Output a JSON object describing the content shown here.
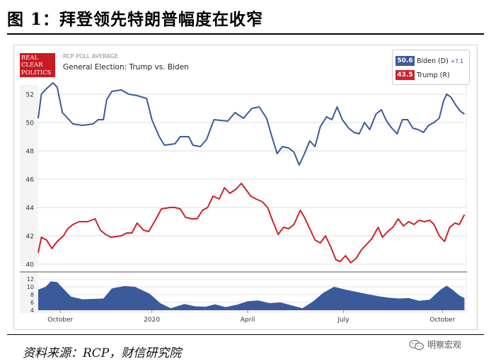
{
  "figure": {
    "title": "图 1：拜登领先特朗普幅度在收窄",
    "source": "资料来源：RCP，财信研究院",
    "watermark": "明察宏观"
  },
  "card": {
    "logo_lines": [
      "REAL",
      "CLEAR",
      "POLITICS"
    ],
    "eyebrow": "RCP POLL AVERAGE",
    "race_title": "General Election: Trump vs. Biden"
  },
  "legend": {
    "biden": {
      "value": "50.6",
      "name": "Biden (D)",
      "spread": "+7.1",
      "color": "#3a5a9b"
    },
    "trump": {
      "value": "43.5",
      "name": "Trump (R)",
      "color": "#d0202a"
    }
  },
  "chart_data": [
    {
      "type": "line",
      "x_domain": [
        "2019-09-24",
        "2020-11-03"
      ],
      "ylim": [
        40,
        52
      ],
      "yticks": [
        40,
        42,
        44,
        46,
        48,
        50,
        52
      ],
      "grid": true,
      "series": [
        {
          "name": "Biden (D)",
          "color": "#3a5a9b",
          "points": [
            [
              "2019-09-24",
              50.3
            ],
            [
              "2019-09-27",
              52.0
            ],
            [
              "2019-10-02",
              52.4
            ],
            [
              "2019-10-08",
              52.8
            ],
            [
              "2019-10-12",
              52.5
            ],
            [
              "2019-10-17",
              50.7
            ],
            [
              "2019-10-22",
              50.3
            ],
            [
              "2019-10-27",
              49.9
            ],
            [
              "2019-11-05",
              49.8
            ],
            [
              "2019-11-15",
              49.9
            ],
            [
              "2019-11-20",
              50.2
            ],
            [
              "2019-11-25",
              50.2
            ],
            [
              "2019-11-28",
              51.6
            ],
            [
              "2019-12-03",
              52.2
            ],
            [
              "2019-12-12",
              52.3
            ],
            [
              "2019-12-19",
              52.0
            ],
            [
              "2019-12-27",
              51.9
            ],
            [
              "2020-01-05",
              51.7
            ],
            [
              "2020-01-10",
              50.2
            ],
            [
              "2020-01-17",
              49.0
            ],
            [
              "2020-01-22",
              48.4
            ],
            [
              "2020-02-01",
              48.5
            ],
            [
              "2020-02-06",
              49.0
            ],
            [
              "2020-02-14",
              49.0
            ],
            [
              "2020-02-18",
              48.4
            ],
            [
              "2020-02-25",
              48.3
            ],
            [
              "2020-03-02",
              48.8
            ],
            [
              "2020-03-09",
              50.2
            ],
            [
              "2020-03-22",
              50.1
            ],
            [
              "2020-03-29",
              50.7
            ],
            [
              "2020-04-06",
              50.3
            ],
            [
              "2020-04-14",
              51.0
            ],
            [
              "2020-04-21",
              51.1
            ],
            [
              "2020-04-28",
              50.3
            ],
            [
              "2020-05-03",
              49.0
            ],
            [
              "2020-05-08",
              47.8
            ],
            [
              "2020-05-13",
              48.3
            ],
            [
              "2020-05-19",
              48.2
            ],
            [
              "2020-05-24",
              47.9
            ],
            [
              "2020-05-29",
              47.0
            ],
            [
              "2020-06-03",
              47.8
            ],
            [
              "2020-06-08",
              48.7
            ],
            [
              "2020-06-13",
              48.3
            ],
            [
              "2020-06-18",
              49.7
            ],
            [
              "2020-06-24",
              50.4
            ],
            [
              "2020-06-29",
              50.2
            ],
            [
              "2020-07-04",
              51.1
            ],
            [
              "2020-07-09",
              50.2
            ],
            [
              "2020-07-15",
              49.6
            ],
            [
              "2020-07-20",
              49.3
            ],
            [
              "2020-07-25",
              49.2
            ],
            [
              "2020-07-30",
              50.0
            ],
            [
              "2020-08-04",
              49.5
            ],
            [
              "2020-08-10",
              50.6
            ],
            [
              "2020-08-15",
              50.9
            ],
            [
              "2020-08-20",
              50.1
            ],
            [
              "2020-08-25",
              49.6
            ],
            [
              "2020-08-30",
              49.2
            ],
            [
              "2020-09-04",
              50.2
            ],
            [
              "2020-09-09",
              50.2
            ],
            [
              "2020-09-14",
              49.6
            ],
            [
              "2020-09-19",
              49.5
            ],
            [
              "2020-09-24",
              49.3
            ],
            [
              "2020-09-29",
              49.8
            ],
            [
              "2020-10-04",
              50.0
            ],
            [
              "2020-10-09",
              50.3
            ],
            [
              "2020-10-13",
              51.5
            ],
            [
              "2020-10-16",
              52.0
            ],
            [
              "2020-10-20",
              51.8
            ],
            [
              "2020-10-25",
              51.2
            ],
            [
              "2020-10-29",
              50.8
            ],
            [
              "2020-11-02",
              50.6
            ]
          ]
        },
        {
          "name": "Trump (R)",
          "color": "#d0202a",
          "points": [
            [
              "2019-09-24",
              40.8
            ],
            [
              "2019-09-27",
              41.9
            ],
            [
              "2019-10-02",
              41.7
            ],
            [
              "2019-10-07",
              41.1
            ],
            [
              "2019-10-12",
              41.6
            ],
            [
              "2019-10-18",
              42.0
            ],
            [
              "2019-10-22",
              42.5
            ],
            [
              "2019-10-27",
              42.8
            ],
            [
              "2019-11-02",
              43.0
            ],
            [
              "2019-11-10",
              43.0
            ],
            [
              "2019-11-17",
              43.2
            ],
            [
              "2019-11-22",
              42.4
            ],
            [
              "2019-11-27",
              42.1
            ],
            [
              "2019-12-02",
              41.9
            ],
            [
              "2019-12-12",
              42.0
            ],
            [
              "2019-12-17",
              42.2
            ],
            [
              "2019-12-22",
              42.2
            ],
            [
              "2019-12-27",
              42.9
            ],
            [
              "2020-01-02",
              42.4
            ],
            [
              "2020-01-07",
              42.3
            ],
            [
              "2020-01-14",
              43.2
            ],
            [
              "2020-01-19",
              43.9
            ],
            [
              "2020-01-27",
              44.0
            ],
            [
              "2020-02-01",
              44.0
            ],
            [
              "2020-02-06",
              43.9
            ],
            [
              "2020-02-11",
              43.3
            ],
            [
              "2020-02-17",
              43.2
            ],
            [
              "2020-02-22",
              43.2
            ],
            [
              "2020-02-27",
              43.8
            ],
            [
              "2020-03-03",
              44.0
            ],
            [
              "2020-03-08",
              44.8
            ],
            [
              "2020-03-14",
              44.6
            ],
            [
              "2020-03-19",
              45.4
            ],
            [
              "2020-03-24",
              45.0
            ],
            [
              "2020-03-30",
              45.3
            ],
            [
              "2020-04-04",
              45.7
            ],
            [
              "2020-04-09",
              45.2
            ],
            [
              "2020-04-13",
              44.8
            ],
            [
              "2020-04-18",
              44.6
            ],
            [
              "2020-04-24",
              44.4
            ],
            [
              "2020-04-29",
              44.0
            ],
            [
              "2020-05-04",
              43.0
            ],
            [
              "2020-05-09",
              42.1
            ],
            [
              "2020-05-14",
              42.6
            ],
            [
              "2020-05-19",
              42.5
            ],
            [
              "2020-05-24",
              42.8
            ],
            [
              "2020-05-30",
              43.8
            ],
            [
              "2020-06-03",
              43.3
            ],
            [
              "2020-06-08",
              42.5
            ],
            [
              "2020-06-13",
              41.7
            ],
            [
              "2020-06-18",
              41.5
            ],
            [
              "2020-06-23",
              42.0
            ],
            [
              "2020-06-28",
              41.2
            ],
            [
              "2020-07-03",
              40.3
            ],
            [
              "2020-07-07",
              40.2
            ],
            [
              "2020-07-12",
              40.6
            ],
            [
              "2020-07-17",
              40.1
            ],
            [
              "2020-07-22",
              40.4
            ],
            [
              "2020-07-27",
              41.0
            ],
            [
              "2020-08-01",
              41.4
            ],
            [
              "2020-08-06",
              41.8
            ],
            [
              "2020-08-12",
              42.6
            ],
            [
              "2020-08-16",
              41.9
            ],
            [
              "2020-08-21",
              42.3
            ],
            [
              "2020-08-26",
              42.6
            ],
            [
              "2020-08-31",
              43.2
            ],
            [
              "2020-09-05",
              42.7
            ],
            [
              "2020-09-10",
              43.0
            ],
            [
              "2020-09-15",
              42.8
            ],
            [
              "2020-09-20",
              43.1
            ],
            [
              "2020-09-25",
              43.0
            ],
            [
              "2020-09-30",
              43.1
            ],
            [
              "2020-10-04",
              42.8
            ],
            [
              "2020-10-09",
              42.0
            ],
            [
              "2020-10-14",
              41.6
            ],
            [
              "2020-10-19",
              42.6
            ],
            [
              "2020-10-24",
              42.9
            ],
            [
              "2020-10-28",
              42.8
            ],
            [
              "2020-11-02",
              43.5
            ]
          ]
        }
      ]
    },
    {
      "type": "area",
      "x_domain": [
        "2019-09-24",
        "2020-11-03"
      ],
      "ylim": [
        4,
        12
      ],
      "yticks": [
        4,
        6,
        8,
        10,
        12
      ],
      "color": "#3a5a9b",
      "points": [
        [
          "2019-09-24",
          9.3
        ],
        [
          "2019-10-01",
          10.0
        ],
        [
          "2019-10-06",
          11.4
        ],
        [
          "2019-10-12",
          11.2
        ],
        [
          "2019-10-18",
          9.5
        ],
        [
          "2019-10-25",
          7.5
        ],
        [
          "2019-11-05",
          6.8
        ],
        [
          "2019-11-15",
          6.9
        ],
        [
          "2019-11-25",
          7.0
        ],
        [
          "2019-12-03",
          9.6
        ],
        [
          "2019-12-15",
          10.2
        ],
        [
          "2019-12-25",
          10.0
        ],
        [
          "2020-01-08",
          8.2
        ],
        [
          "2020-01-18",
          5.8
        ],
        [
          "2020-01-28",
          4.5
        ],
        [
          "2020-02-10",
          5.6
        ],
        [
          "2020-02-20",
          5.0
        ],
        [
          "2020-03-01",
          4.9
        ],
        [
          "2020-03-10",
          5.5
        ],
        [
          "2020-03-20",
          4.8
        ],
        [
          "2020-03-31",
          5.4
        ],
        [
          "2020-04-10",
          6.3
        ],
        [
          "2020-04-20",
          6.5
        ],
        [
          "2020-05-01",
          5.8
        ],
        [
          "2020-05-11",
          6.0
        ],
        [
          "2020-05-21",
          5.3
        ],
        [
          "2020-06-01",
          4.5
        ],
        [
          "2020-06-11",
          6.2
        ],
        [
          "2020-06-21",
          8.5
        ],
        [
          "2020-07-01",
          10.0
        ],
        [
          "2020-07-12",
          9.3
        ],
        [
          "2020-07-22",
          8.7
        ],
        [
          "2020-08-02",
          8.1
        ],
        [
          "2020-08-12",
          7.6
        ],
        [
          "2020-08-22",
          7.2
        ],
        [
          "2020-09-01",
          7.0
        ],
        [
          "2020-09-10",
          7.1
        ],
        [
          "2020-09-20",
          6.4
        ],
        [
          "2020-09-30",
          6.7
        ],
        [
          "2020-10-10",
          9.2
        ],
        [
          "2020-10-16",
          10.3
        ],
        [
          "2020-10-22",
          9.2
        ],
        [
          "2020-10-28",
          7.8
        ],
        [
          "2020-11-02",
          7.1
        ]
      ]
    }
  ],
  "x_ticks": [
    {
      "date": "2019-10-15",
      "label": "October"
    },
    {
      "date": "2020-01-10",
      "label": "2020"
    },
    {
      "date": "2020-04-10",
      "label": "April"
    },
    {
      "date": "2020-07-10",
      "label": "July"
    },
    {
      "date": "2020-10-12",
      "label": "October"
    }
  ]
}
